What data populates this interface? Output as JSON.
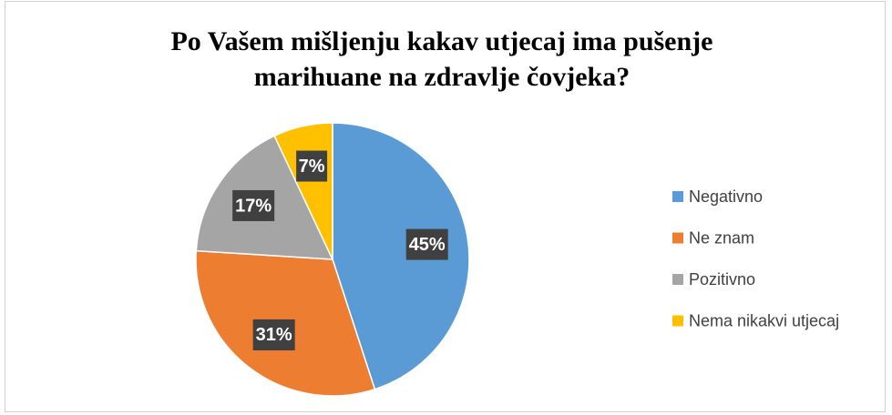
{
  "chart_data": {
    "type": "pie",
    "title": "Po Vašem mišljenju kakav utjecaj ima pušenje marihuane na zdravlje čovjeka?",
    "series": [
      {
        "name": "Negativno",
        "color": "#5b9bd5"
      },
      {
        "name": "Ne znam",
        "color": "#ed7d31"
      },
      {
        "name": "Pozitivno",
        "color": "#a5a5a5"
      },
      {
        "name": "Nema nikakvi utjecaj",
        "color": "#ffc000"
      }
    ],
    "values": [
      45,
      31,
      17,
      7
    ],
    "value_labels": [
      "45%",
      "31%",
      "17%",
      "7%"
    ],
    "legend": "right"
  }
}
